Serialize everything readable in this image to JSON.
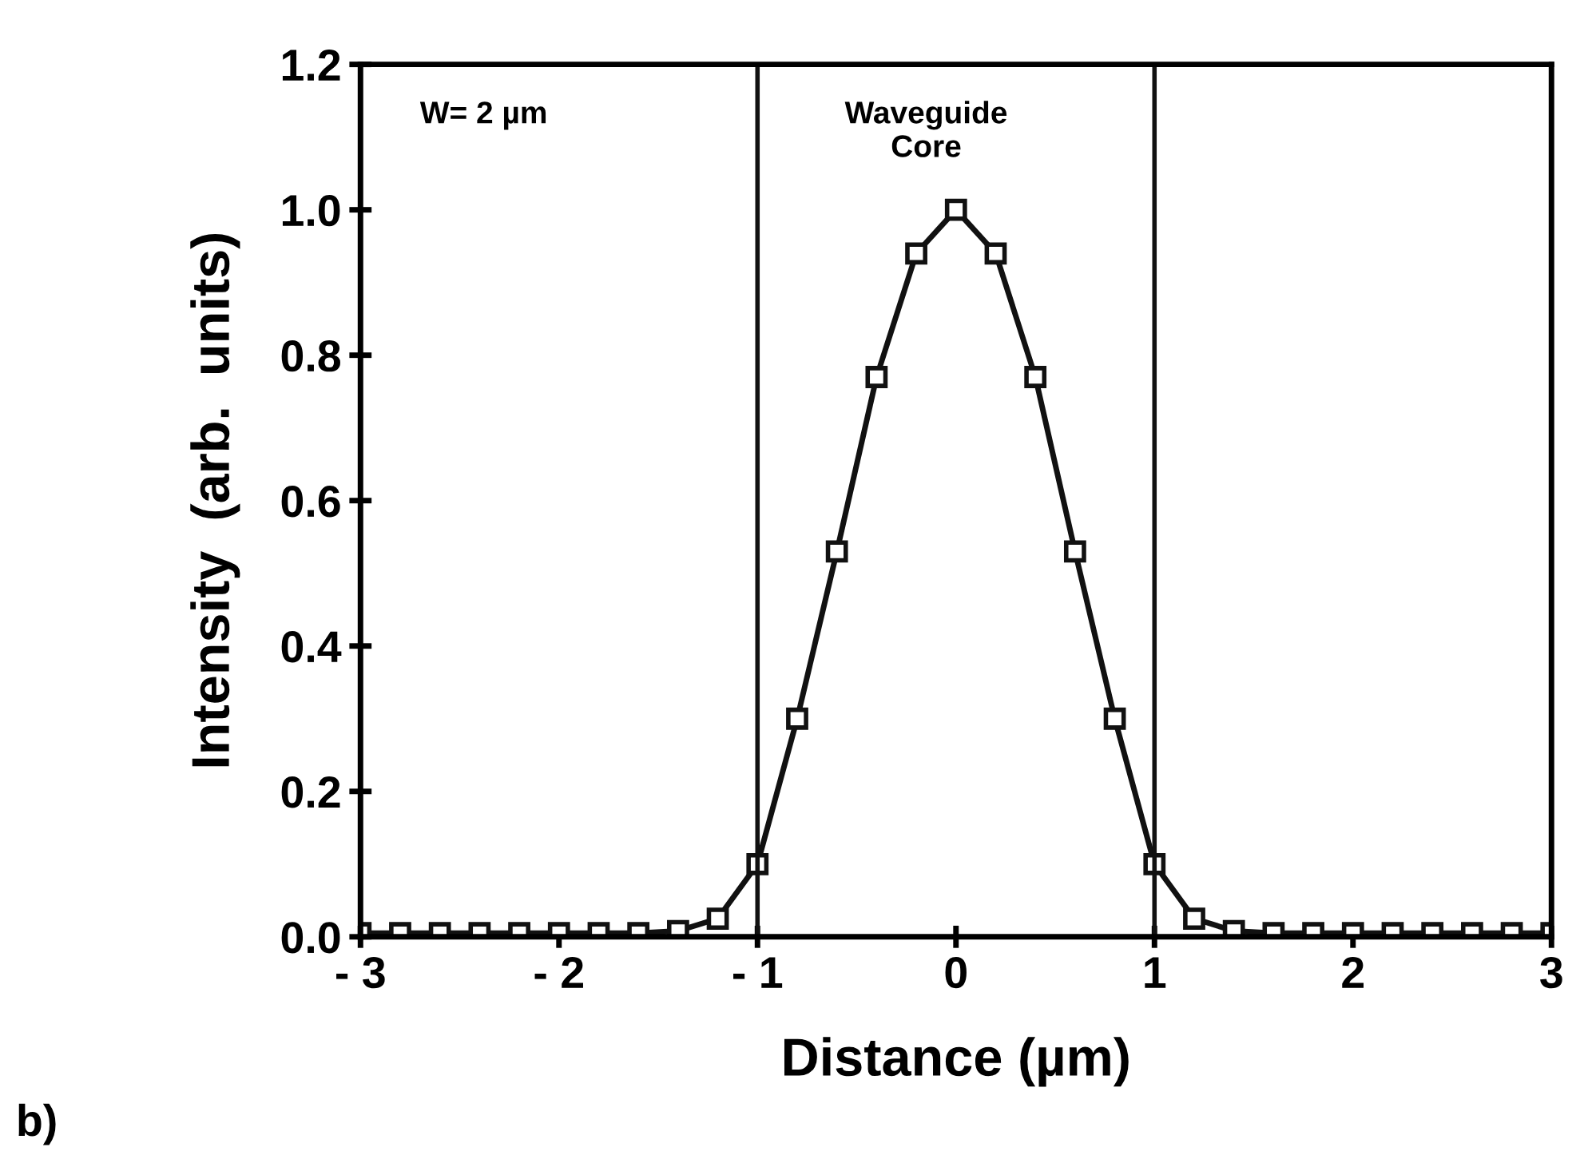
{
  "chart_data": {
    "type": "line",
    "xlabel": "Distance (µm)",
    "ylabel": "Intensity  (arb.  units)",
    "x": [
      -3,
      -2.8,
      -2.6,
      -2.4,
      -2.2,
      -2,
      -1.8,
      -1.6,
      -1.4,
      -1.2,
      -1,
      -0.8,
      -0.6,
      -0.4,
      -0.2,
      0,
      0.2,
      0.4,
      0.6,
      0.8,
      1,
      1.2,
      1.4,
      1.6,
      1.8,
      2,
      2.2,
      2.4,
      2.6,
      2.8,
      3
    ],
    "series": [
      {
        "color": "#111111",
        "values": [
          0.005,
          0.005,
          0.005,
          0.005,
          0.005,
          0.005,
          0.005,
          0.005,
          0.008,
          0.025,
          0.1,
          0.3,
          0.53,
          0.77,
          0.94,
          1.0,
          0.94,
          0.77,
          0.53,
          0.3,
          0.1,
          0.025,
          0.008,
          0.005,
          0.005,
          0.005,
          0.005,
          0.005,
          0.005,
          0.005,
          0.005
        ]
      }
    ],
    "marker": "square",
    "line_style": "solid",
    "grid": false,
    "legend": false,
    "xlim": [
      -3,
      3
    ],
    "xticks": [
      {
        "value": -3,
        "label": "- 3"
      },
      {
        "value": -2,
        "label": "- 2"
      },
      {
        "value": -1,
        "label": "- 1"
      },
      0,
      1,
      2,
      3
    ],
    "ylim": [
      0,
      1.2
    ],
    "yticks": [
      {
        "value": 0,
        "label": "0.0"
      },
      0.2,
      0.4,
      0.6,
      0.8,
      {
        "value": 1,
        "label": "1.0"
      },
      1.2
    ],
    "ref_lines": [
      {
        "axis": "x",
        "value": -1,
        "label": "Waveguide\nCore",
        "color": "#111111"
      },
      {
        "axis": "x",
        "value": 1,
        "color": "#111111"
      }
    ],
    "annotations": [
      "W= 2 µm",
      "b)"
    ]
  }
}
